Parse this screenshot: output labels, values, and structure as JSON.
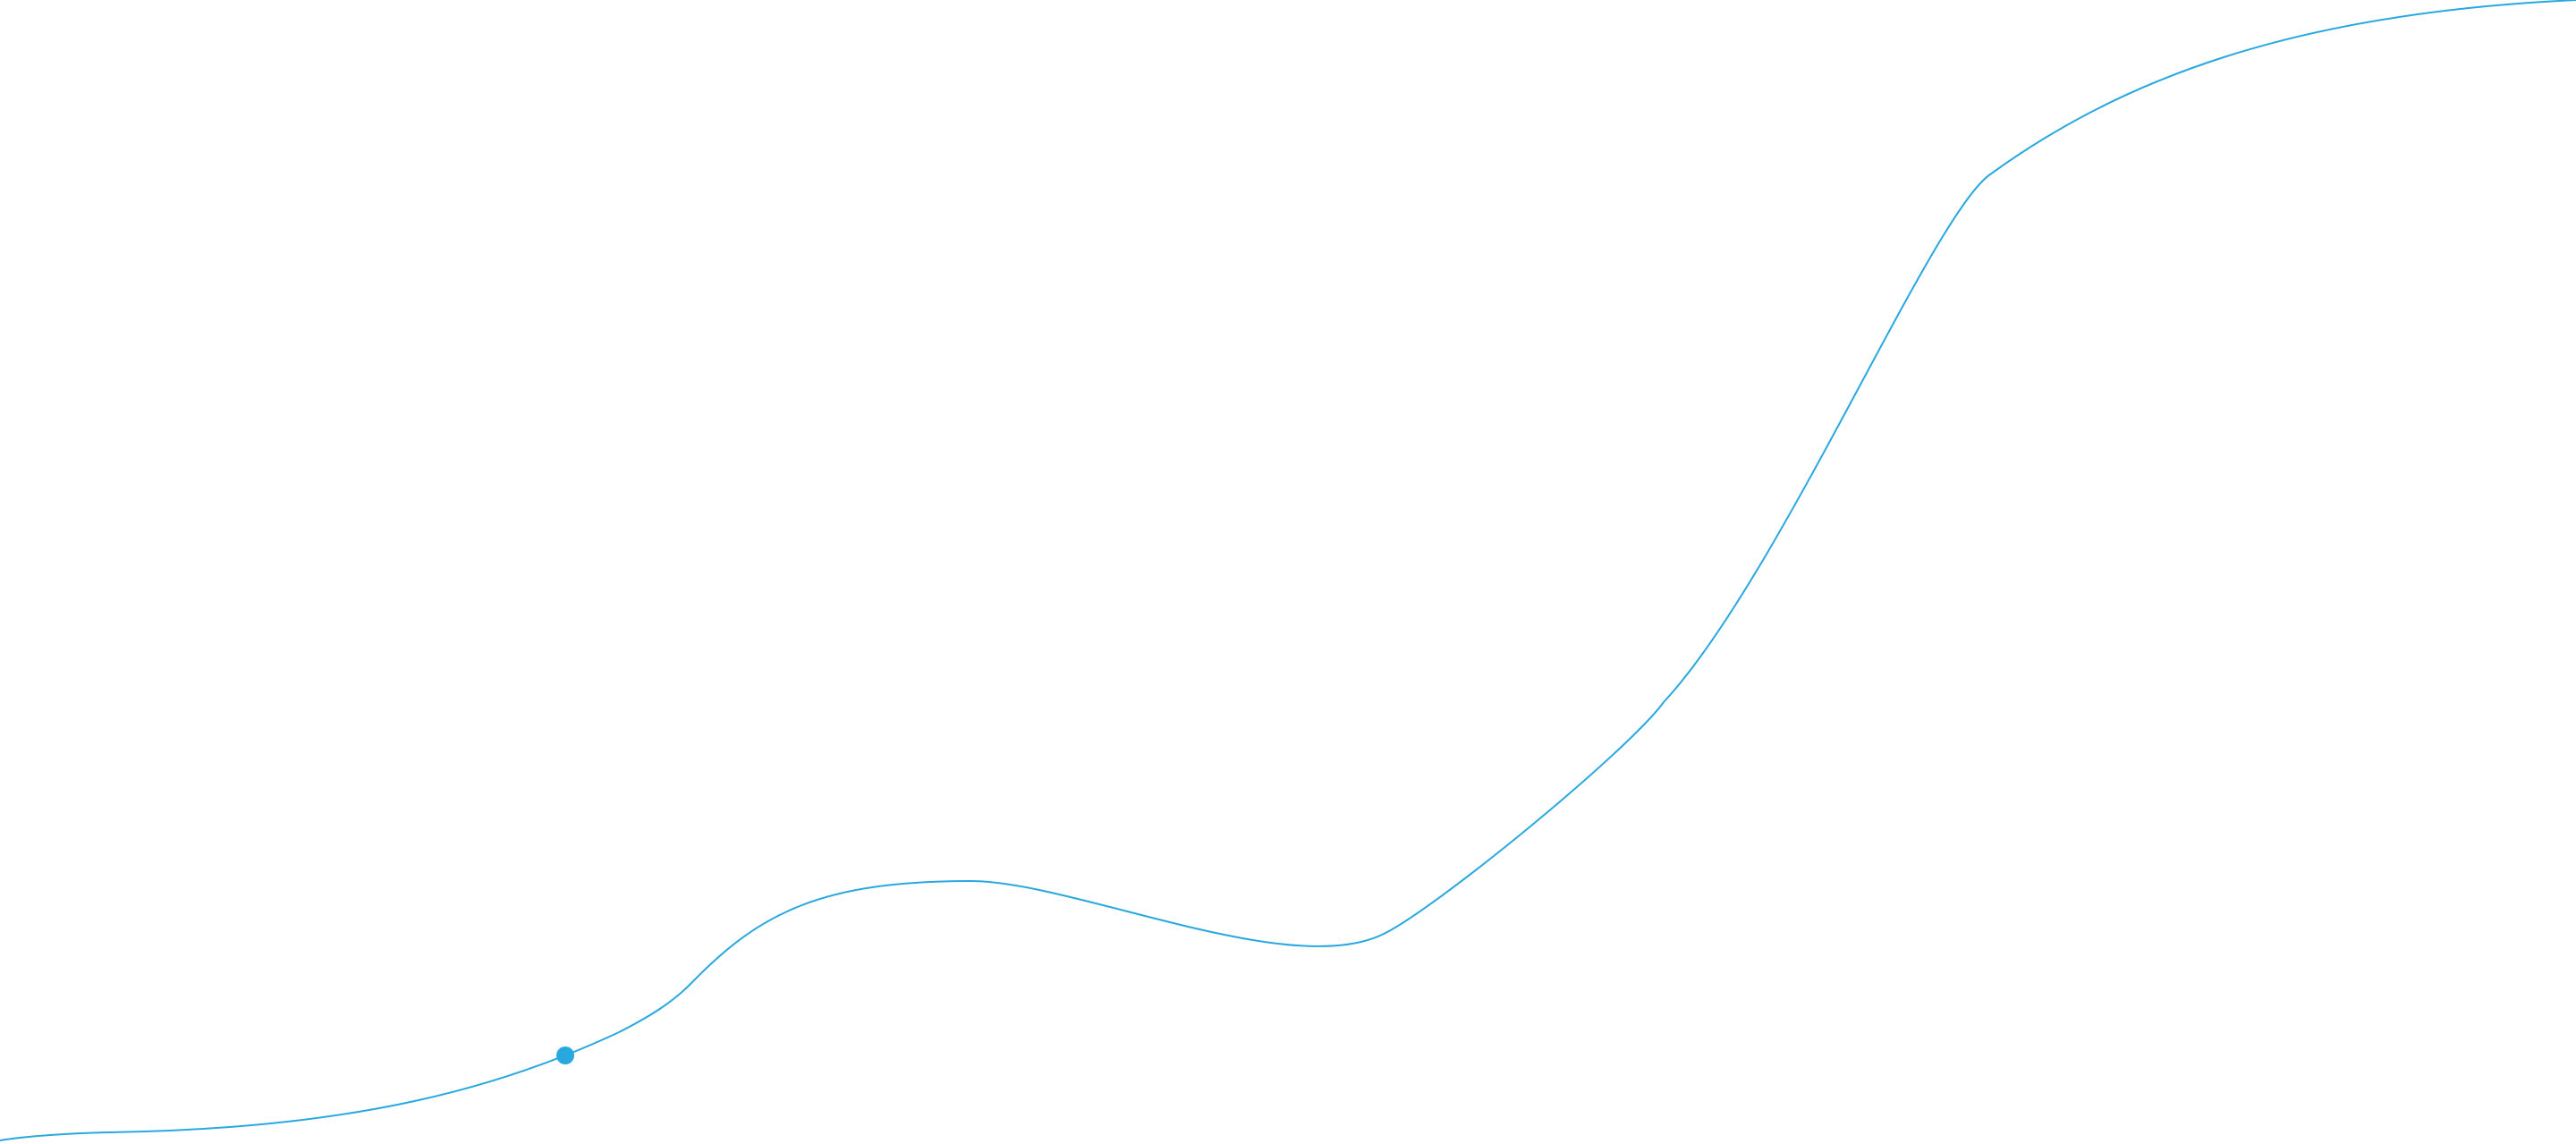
{
  "colors": {
    "line": "#29a8e0",
    "marker": "#29a8e0",
    "background": "#ffffff"
  }
}
